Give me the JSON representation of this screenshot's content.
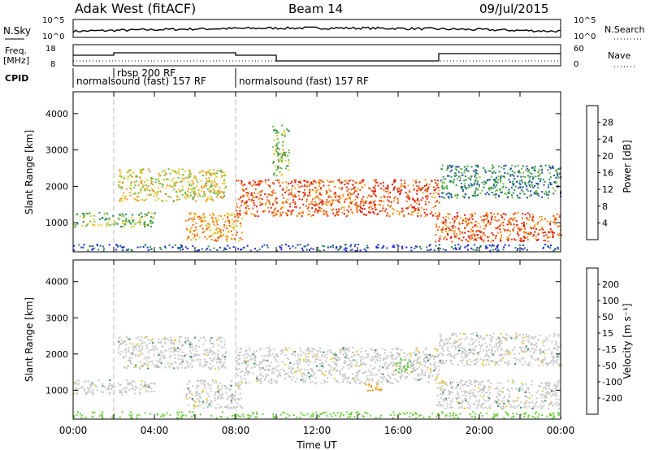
{
  "header": {
    "title": "Adak West (fitACF)",
    "beam": "Beam 14",
    "date": "09/Jul/2015"
  },
  "top_panels": {
    "nsky": {
      "label": "N.Sky",
      "left_ticks": [
        "10^5",
        "10^0"
      ],
      "right_label": "N.Search",
      "right_ticks": [
        "10^5",
        "10^0"
      ]
    },
    "freq": {
      "label_line1": "Freq.",
      "label_line2": "[MHz]",
      "left_ticks": [
        "18",
        "8"
      ],
      "right_label": "Nave",
      "right_ticks": [
        "60",
        "0"
      ]
    },
    "cpid": {
      "label": "CPID",
      "entries": [
        {
          "text": "normalsound (fast) 157 RF",
          "start_hour": 0
        },
        {
          "text": "rbsp 200 RF",
          "start_hour": 2
        },
        {
          "text": "normalsound (fast) 157 RF",
          "start_hour": 8
        }
      ]
    }
  },
  "chart_data": [
    {
      "type": "heatmap",
      "panel": "power",
      "ylabel": "Slant Range [km]",
      "yticks": [
        "1000",
        "2000",
        "3000",
        "4000"
      ],
      "ylim": [
        200,
        4600
      ],
      "xlim": [
        0,
        24
      ],
      "colorbar": {
        "label": "Power [dB]",
        "ticks": [
          "4",
          "8",
          "12",
          "16",
          "20",
          "24",
          "28"
        ],
        "colors": [
          "#1a1ae6",
          "#1f4aa8",
          "#2e8b57",
          "#6cb84a",
          "#e0c82a",
          "#f09a20",
          "#f05a14",
          "#e01a10"
        ]
      },
      "features": [
        {
          "t0": 0,
          "t1": 4,
          "r0": 900,
          "r1": 1300,
          "level": 3
        },
        {
          "t0": 2.2,
          "t1": 7.5,
          "r0": 1600,
          "r1": 2500,
          "level": 4
        },
        {
          "t0": 5.5,
          "t1": 8.3,
          "r0": 500,
          "r1": 1300,
          "level": 5
        },
        {
          "t0": 8,
          "t1": 18,
          "r0": 1200,
          "r1": 2200,
          "level": 6
        },
        {
          "t0": 9.8,
          "t1": 10.6,
          "r0": 2300,
          "r1": 3700,
          "level": 3
        },
        {
          "t0": 17.8,
          "t1": 24,
          "r0": 500,
          "r1": 1300,
          "level": 6
        },
        {
          "t0": 18,
          "t1": 24,
          "r0": 1700,
          "r1": 2600,
          "level": 2
        }
      ]
    },
    {
      "type": "heatmap",
      "panel": "velocity",
      "ylabel": "Slant Range [km]",
      "yticks": [
        "1000",
        "2000",
        "3000",
        "4000"
      ],
      "ylim": [
        200,
        4600
      ],
      "xlim": [
        0,
        24
      ],
      "xticks": [
        "00:00",
        "04:00",
        "08:00",
        "12:00",
        "16:00",
        "20:00",
        "00:00"
      ],
      "xlabel": "Time UT",
      "colorbar": {
        "label": "Velocity [m s⁻¹]",
        "ticks": [
          "200",
          "100",
          "50",
          "15",
          "-15",
          "-50",
          "-100",
          "-200"
        ],
        "colors": [
          "#1a1ae6",
          "#1f4aa8",
          "#2e8b57",
          "#6cd040",
          "#c8c8c8",
          "#e8c82a",
          "#f08a20",
          "#f04a14",
          "#e01010"
        ]
      },
      "features": [
        {
          "t0": 0,
          "t1": 4,
          "r0": 900,
          "r1": 1300,
          "v": "ground"
        },
        {
          "t0": 2.2,
          "t1": 7.5,
          "r0": 1600,
          "r1": 2500,
          "v": "ground"
        },
        {
          "t0": 5.5,
          "t1": 8.3,
          "r0": 500,
          "r1": 1300,
          "v": "ground"
        },
        {
          "t0": 8,
          "t1": 18,
          "r0": 1200,
          "r1": 2200,
          "v": "ground"
        },
        {
          "t0": 14.3,
          "t1": 15.3,
          "r0": 1000,
          "r1": 1200,
          "v": "neg"
        },
        {
          "t0": 15.8,
          "t1": 16.8,
          "r0": 1500,
          "r1": 1900,
          "v": "pos"
        },
        {
          "t0": 17.8,
          "t1": 24,
          "r0": 500,
          "r1": 1300,
          "v": "ground"
        },
        {
          "t0": 18,
          "t1": 24,
          "r0": 1700,
          "r1": 2600,
          "v": "ground"
        }
      ]
    }
  ]
}
